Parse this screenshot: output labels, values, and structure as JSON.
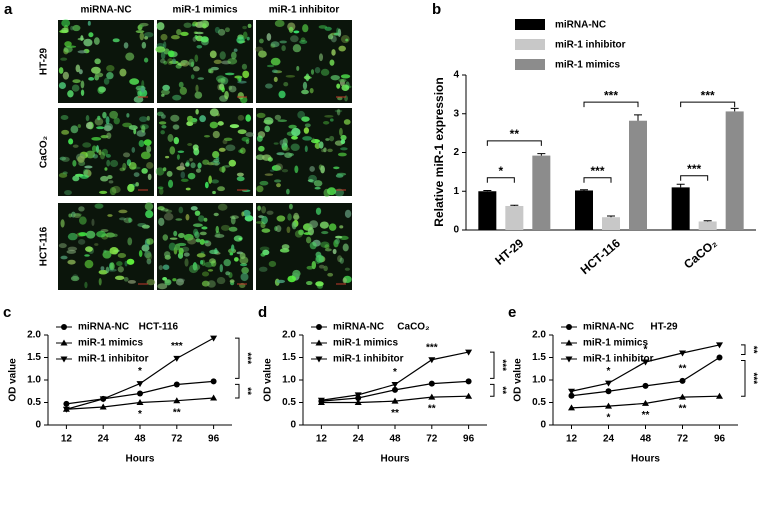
{
  "image_panel": {
    "panel_label": "a",
    "columns": [
      "miRNA-NC",
      "miR-1 mimics",
      "miR-1 inhibitor"
    ],
    "rows": [
      "HT-29",
      "CaCO₂",
      "HCT-116"
    ]
  },
  "chart_data": [
    {
      "type": "bar",
      "panel_label": "b",
      "y_label": "Relative miR-1 expression",
      "categories": [
        "HT-29",
        "HCT-116",
        "CaCO₂"
      ],
      "series": [
        {
          "name": "miRNA-NC",
          "color": "#000000",
          "values": [
            1.0,
            1.02,
            1.1
          ],
          "errors": [
            0.02,
            0.02,
            0.08
          ]
        },
        {
          "name": "miR-1 inhibitor",
          "color": "#c8c8c8",
          "values": [
            0.62,
            0.33,
            0.22
          ],
          "errors": [
            0.02,
            0.03,
            0.02
          ]
        },
        {
          "name": "miR-1 mimics",
          "color": "#8c8c8c",
          "values": [
            1.92,
            2.82,
            3.06
          ],
          "errors": [
            0.05,
            0.15,
            0.08
          ]
        }
      ],
      "ylim": [
        0,
        4
      ],
      "yticks": [
        0,
        1,
        2,
        3,
        4
      ],
      "annotations": [
        "*",
        "**",
        "***",
        "***",
        "***",
        "***"
      ]
    },
    {
      "type": "line",
      "panel_label": "c",
      "title": "HCT-116",
      "x_label": "Hours",
      "y_label": "OD value",
      "categories": [
        "12",
        "24",
        "48",
        "72",
        "96"
      ],
      "series": [
        {
          "name": "miRNA-NC",
          "color": "#000000",
          "marker": "circle",
          "values": [
            0.47,
            0.58,
            0.7,
            0.9,
            0.97
          ]
        },
        {
          "name": "miR-1 mimics",
          "color": "#000000",
          "marker": "triangle-up",
          "values": [
            0.35,
            0.4,
            0.5,
            0.54,
            0.6
          ]
        },
        {
          "name": "miR-1 inhibitor",
          "color": "#000000",
          "marker": "triangle-down",
          "values": [
            0.35,
            0.58,
            0.92,
            1.48,
            1.93
          ]
        }
      ],
      "ylim": [
        0,
        2
      ],
      "yticks": [
        0,
        0.5,
        {
          "value": 1,
          "label": "1.0"
        },
        1.5,
        {
          "value": 2,
          "label": "2.0"
        }
      ],
      "annotations": [
        "*",
        "***",
        "*",
        "**"
      ],
      "bracket_labels": [
        "***",
        "**"
      ]
    },
    {
      "type": "line",
      "panel_label": "d",
      "title": "CaCO₂",
      "x_label": "Hours",
      "y_label": "OD value",
      "categories": [
        "12",
        "24",
        "48",
        "72",
        "96"
      ],
      "series": [
        {
          "name": "miRNA-NC",
          "color": "#000000",
          "marker": "circle",
          "values": [
            0.53,
            0.6,
            0.78,
            0.92,
            0.97
          ]
        },
        {
          "name": "miR-1 mimics",
          "color": "#000000",
          "marker": "triangle-up",
          "values": [
            0.5,
            0.5,
            0.53,
            0.62,
            0.64
          ]
        },
        {
          "name": "miR-1 inhibitor",
          "color": "#000000",
          "marker": "triangle-down",
          "values": [
            0.55,
            0.67,
            0.9,
            1.45,
            1.62
          ]
        }
      ],
      "ylim": [
        0,
        2
      ],
      "yticks": [
        0,
        0.5,
        {
          "value": 1,
          "label": "1.0"
        },
        1.5,
        {
          "value": 2,
          "label": "2.0"
        }
      ],
      "annotations": [
        "*",
        "***",
        "**",
        "**"
      ],
      "bracket_labels": [
        "***",
        "**"
      ]
    },
    {
      "type": "line",
      "panel_label": "e",
      "title": "HT-29",
      "x_label": "Hours",
      "y_label": "OD value",
      "categories": [
        "12",
        "24",
        "48",
        "72",
        "96"
      ],
      "series": [
        {
          "name": "miRNA-NC",
          "color": "#000000",
          "marker": "circle",
          "values": [
            0.65,
            0.75,
            0.87,
            0.98,
            1.5
          ]
        },
        {
          "name": "miR-1 mimics",
          "color": "#000000",
          "marker": "triangle-up",
          "values": [
            0.38,
            0.42,
            0.48,
            0.62,
            0.64
          ]
        },
        {
          "name": "miR-1 inhibitor",
          "color": "#000000",
          "marker": "triangle-down",
          "values": [
            0.75,
            0.93,
            1.4,
            1.6,
            1.78
          ]
        }
      ],
      "ylim": [
        0,
        2
      ],
      "yticks": [
        0,
        0.5,
        {
          "value": 1,
          "label": "1.0"
        },
        1.5,
        {
          "value": 2,
          "label": "2.0"
        }
      ],
      "annotations": [
        "*",
        "*",
        "**",
        "*",
        "**",
        "**"
      ],
      "bracket_labels": [
        "**",
        "***"
      ]
    }
  ]
}
